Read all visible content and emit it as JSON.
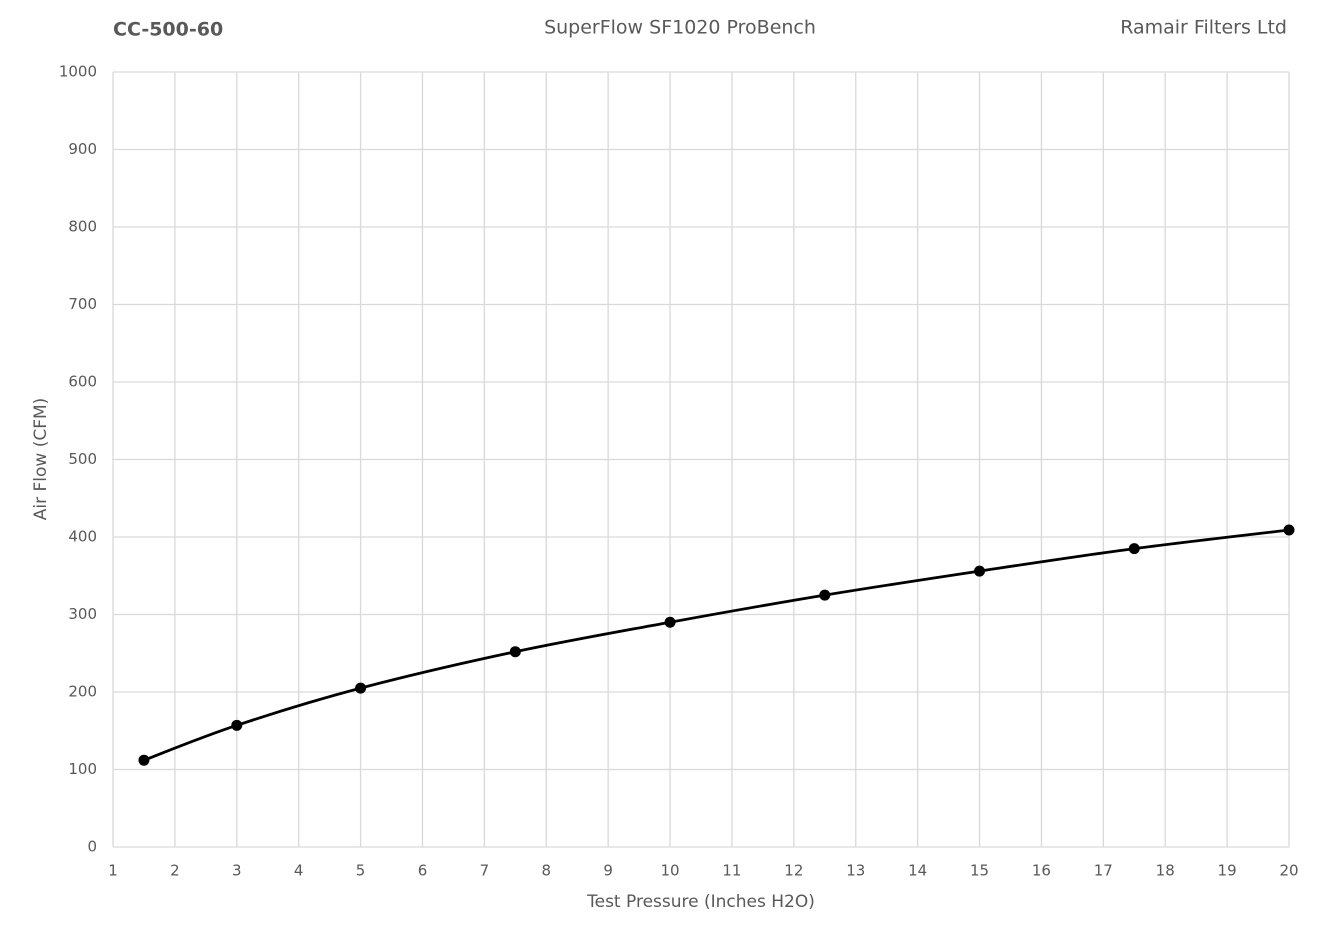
{
  "chart_data": {
    "type": "line",
    "smooth": true,
    "title": "SuperFlow SF1020 ProBench",
    "part_number": "CC-500-60",
    "company": "Ramair Filters Ltd",
    "x_label": "Test Pressure (Inches H2O)",
    "y_label": "Air Flow (CFM)",
    "x": [
      1.5,
      3,
      5,
      7.5,
      10,
      12.5,
      15,
      17.5,
      20
    ],
    "values": [
      112,
      157,
      205,
      252,
      290,
      325,
      356,
      385,
      409
    ],
    "color": "#000000",
    "xlim": [
      1,
      20
    ],
    "xticks": [
      1,
      2,
      3,
      4,
      5,
      6,
      7,
      8,
      9,
      10,
      11,
      12,
      13,
      14,
      15,
      16,
      17,
      18,
      19,
      20
    ],
    "ylim": [
      0,
      1000
    ],
    "yticks": [
      0,
      100,
      200,
      300,
      400,
      500,
      600,
      700,
      800,
      900,
      1000
    ],
    "grid": true
  }
}
